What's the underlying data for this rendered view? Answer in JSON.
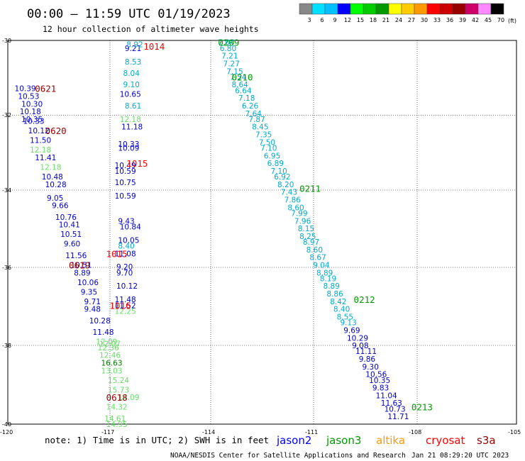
{
  "header": {
    "title": "00:00 – 11:59 UTC 01/19/2023",
    "subtitle": "12 hour collection of altimeter wave heights"
  },
  "legend": {
    "colors": [
      "#888888",
      "#00e0ff",
      "#00c0ff",
      "#0000ff",
      "#00ff00",
      "#00cc00",
      "#009900",
      "#ffff00",
      "#ffcc00",
      "#ff9900",
      "#ff0000",
      "#cc0000",
      "#990000",
      "#cc0066",
      "#ff88ff",
      "#000000"
    ],
    "labels": [
      "3",
      "6",
      "9",
      "12",
      "15",
      "18",
      "21",
      "24",
      "27",
      "30",
      "33",
      "36",
      "39",
      "42",
      "45",
      "70"
    ],
    "unit": "(ft)"
  },
  "axes": {
    "lat_labels": [
      "-30",
      "-32",
      "-34",
      "-36",
      "-38",
      "-40"
    ],
    "lon_labels": [
      "-120",
      "-117",
      "-114",
      "-111",
      "-108",
      "-105"
    ]
  },
  "satellites": [
    {
      "name": "jason2",
      "color": "#0000ff"
    },
    {
      "name": "jason3",
      "color": "#009900"
    },
    {
      "name": "altika",
      "color": "#ff9900"
    },
    {
      "name": "cryosat",
      "color": "#ff0000"
    },
    {
      "name": "s3a",
      "color": "#990000"
    }
  ],
  "footer": {
    "note": "note: 1) Time is in UTC; 2) SWH is in feet",
    "credit": "NOAA/NESDIS Center for Satellite Applications and Research",
    "timestamp": "Jan 21 08:29:20 UTC 2023"
  },
  "time_labels": [
    {
      "text": "0209",
      "color": "#009900",
      "lon": -113.8,
      "lat": -30.05
    },
    {
      "text": "0210",
      "color": "#009900",
      "lon": -113.4,
      "lat": -30.95
    },
    {
      "text": "0211",
      "color": "#009900",
      "lon": -111.4,
      "lat": -33.85
    },
    {
      "text": "0212",
      "color": "#009900",
      "lon": -109.8,
      "lat": -36.75
    },
    {
      "text": "0213",
      "color": "#009900",
      "lon": -108.1,
      "lat": -39.55
    },
    {
      "text": "0621",
      "color": "#990000",
      "lon": -119.2,
      "lat": -31.25
    },
    {
      "text": "0620",
      "color": "#990000",
      "lon": -118.9,
      "lat": -32.35
    },
    {
      "text": "0619",
      "color": "#990000",
      "lon": -118.2,
      "lat": -35.85
    },
    {
      "text": "0618",
      "color": "#990000",
      "lon": -117.1,
      "lat": -39.3
    },
    {
      "text": "1014",
      "color": "#ff0000",
      "lon": -116.0,
      "lat": -30.15
    },
    {
      "text": "1015",
      "color": "#ff0000",
      "lon": -116.5,
      "lat": -33.2
    },
    {
      "text": "1015",
      "color": "#ff0000",
      "lon": -117.1,
      "lat": -35.55
    },
    {
      "text": "1016",
      "color": "#ff0000",
      "lon": -117.0,
      "lat": -36.9
    }
  ],
  "tracks": [
    {
      "name": "jason3-cyan",
      "color": "#00aacc",
      "points": [
        [
          "7.04",
          -113.8,
          -30.05
        ],
        [
          "6.80",
          -113.75,
          -30.2
        ],
        [
          "7.21",
          -113.7,
          -30.4
        ],
        [
          "7.27",
          -113.65,
          -30.6
        ],
        [
          "7.15",
          -113.55,
          -30.8
        ],
        [
          "7.54",
          -113.45,
          -30.95
        ],
        [
          "8.64",
          -113.4,
          -31.15
        ],
        [
          "6.64",
          -113.3,
          -31.3
        ],
        [
          "7.18",
          -113.2,
          -31.5
        ],
        [
          "6.26",
          -113.1,
          -31.7
        ],
        [
          "7.64",
          -113.0,
          -31.9
        ],
        [
          "7.87",
          -112.9,
          -32.05
        ],
        [
          "8.45",
          -112.8,
          -32.25
        ],
        [
          "7.35",
          -112.7,
          -32.45
        ],
        [
          "7.50",
          -112.6,
          -32.65
        ],
        [
          "7.10",
          -112.55,
          -32.8
        ],
        [
          "6.95",
          -112.45,
          -33.0
        ],
        [
          "6.89",
          -112.35,
          -33.2
        ],
        [
          "7.10",
          -112.25,
          -33.4
        ],
        [
          "6.92",
          -112.15,
          -33.55
        ],
        [
          "8.20",
          -112.05,
          -33.75
        ],
        [
          "7.43",
          -111.95,
          -33.95
        ],
        [
          "7.86",
          -111.85,
          -34.15
        ],
        [
          "8.60",
          -111.75,
          -34.35
        ],
        [
          "7.99",
          -111.65,
          -34.5
        ],
        [
          "7.96",
          -111.55,
          -34.7
        ],
        [
          "8.15",
          -111.45,
          -34.9
        ],
        [
          "8.25",
          -111.4,
          -35.1
        ],
        [
          "8.97",
          -111.3,
          -35.25
        ],
        [
          "8.60",
          -111.2,
          -35.45
        ],
        [
          "8.67",
          -111.1,
          -35.65
        ],
        [
          "9.04",
          -111.0,
          -35.85
        ],
        [
          "8.89",
          -110.9,
          -36.05
        ],
        [
          "8.19",
          -110.8,
          -36.2
        ],
        [
          "8.89",
          -110.7,
          -36.4
        ],
        [
          "8.86",
          -110.6,
          -36.6
        ],
        [
          "8.42",
          -110.5,
          -36.8
        ],
        [
          "8.40",
          -110.4,
          -37.0
        ],
        [
          "8.55",
          -110.3,
          -37.2
        ],
        [
          "9.13",
          -110.2,
          -37.35
        ]
      ]
    },
    {
      "name": "jason2-blue",
      "color": "#0000cc",
      "points": [
        [
          "9.69",
          -110.1,
          -37.55
        ],
        [
          "10.29",
          -110.0,
          -37.75
        ],
        [
          "9.08",
          -109.85,
          -37.95
        ],
        [
          "11.11",
          -109.75,
          -38.1
        ],
        [
          "9.86",
          -109.65,
          -38.3
        ],
        [
          "9.30",
          -109.55,
          -38.5
        ],
        [
          "10.56",
          -109.45,
          -38.7
        ],
        [
          "10.35",
          -109.35,
          -38.85
        ],
        [
          "9.83",
          -109.25,
          -39.05
        ],
        [
          "11.04",
          -109.15,
          -39.25
        ],
        [
          "11.63",
          -109.0,
          -39.45
        ],
        [
          "10.73",
          -108.9,
          -39.6
        ],
        [
          "11.71",
          -108.8,
          -39.8
        ]
      ]
    },
    {
      "name": "left-track-blue",
      "color": "#0000cc",
      "points": [
        [
          "10.39",
          -119.8,
          -31.25
        ],
        [
          "10.53",
          -119.7,
          -31.45
        ],
        [
          "10.30",
          -119.6,
          -31.65
        ],
        [
          "10.18",
          -119.65,
          -31.85
        ],
        [
          "10.35",
          -119.6,
          -32.05
        ],
        [
          "10.33",
          -119.55,
          -32.1
        ],
        [
          "10.12",
          -119.4,
          -32.35
        ],
        [
          "11.50",
          -119.35,
          -32.6
        ],
        [
          "11.41",
          -119.2,
          -33.05
        ],
        [
          "10.48",
          -119.0,
          -33.55
        ],
        [
          "10.28",
          -118.9,
          -33.75
        ],
        [
          "9.05",
          -118.85,
          -34.1
        ],
        [
          "9.66",
          -118.7,
          -34.3
        ],
        [
          "10.76",
          -118.6,
          -34.6
        ],
        [
          "10.41",
          -118.5,
          -34.8
        ],
        [
          "10.51",
          -118.45,
          -35.05
        ],
        [
          "9.60",
          -118.35,
          -35.3
        ],
        [
          "11.56",
          -118.3,
          -35.6
        ],
        [
          "10.51",
          -118.15,
          -35.85
        ],
        [
          "8.89",
          -118.05,
          -36.05
        ],
        [
          "10.06",
          -117.95,
          -36.3
        ],
        [
          "9.35",
          -117.85,
          -36.55
        ],
        [
          "9.71",
          -117.75,
          -36.8
        ],
        [
          "9.48",
          -117.75,
          -37.0
        ],
        [
          "10.28",
          -117.6,
          -37.3
        ],
        [
          "11.48",
          -117.5,
          -37.6
        ]
      ]
    },
    {
      "name": "left-track-green",
      "color": "#66dd66",
      "points": [
        [
          "12.18",
          -119.35,
          -32.85
        ],
        [
          "12.18",
          -119.05,
          -33.3
        ],
        [
          "12.09",
          -117.4,
          -37.85
        ],
        [
          "12.07",
          -117.3,
          -37.9
        ],
        [
          "12.36",
          -117.35,
          -38.0
        ],
        [
          "12.46",
          -117.3,
          -38.2
        ],
        [
          "13.03",
          -117.25,
          -38.6
        ],
        [
          "15.24",
          -117.05,
          -38.85
        ],
        [
          "15.73",
          -117.05,
          -39.1
        ],
        [
          "14.09",
          -116.75,
          -39.3
        ],
        [
          "14.32",
          -117.1,
          -39.55
        ],
        [
          "14.61",
          -117.15,
          -39.85
        ],
        [
          "14.95",
          -117.1,
          -40.0
        ]
      ]
    },
    {
      "name": "left-track-darkgreen",
      "color": "#007700",
      "points": [
        [
          "16.63",
          -117.25,
          -38.4
        ]
      ]
    },
    {
      "name": "mid-track-blue",
      "color": "#0000cc",
      "points": [
        [
          "9.21",
          -116.55,
          -30.2
        ],
        [
          "10.65",
          -116.7,
          -31.4
        ],
        [
          "11.18",
          -116.65,
          -32.25
        ],
        [
          "10.33",
          -116.75,
          -32.7
        ],
        [
          "10.09",
          -116.75,
          -32.8
        ],
        [
          "10.49",
          -116.85,
          -33.25
        ],
        [
          "10.59",
          -116.85,
          -33.4
        ],
        [
          "10.75",
          -116.85,
          -33.7
        ],
        [
          "10.59",
          -116.85,
          -34.05
        ],
        [
          "9.43",
          -116.75,
          -34.7
        ],
        [
          "10.84",
          -116.7,
          -34.85
        ],
        [
          "10.05",
          -116.75,
          -35.2
        ],
        [
          "11.08",
          -116.85,
          -35.55
        ],
        [
          "9.20",
          -116.8,
          -35.9
        ],
        [
          "9.70",
          -116.8,
          -36.05
        ],
        [
          "10.12",
          -116.8,
          -36.4
        ],
        [
          "11.48",
          -116.85,
          -36.75
        ],
        [
          "11.52",
          -116.85,
          -36.9
        ]
      ]
    },
    {
      "name": "mid-track-cyan",
      "color": "#00aacc",
      "points": [
        [
          "8.92",
          -116.5,
          -30.1
        ],
        [
          "8.53",
          -116.55,
          -30.55
        ],
        [
          "8.04",
          -116.6,
          -30.85
        ],
        [
          "9.10",
          -116.6,
          -31.15
        ],
        [
          "8.61",
          -116.55,
          -31.7
        ],
        [
          "8.40",
          -116.75,
          -35.35
        ]
      ]
    },
    {
      "name": "mid-track-green",
      "color": "#66dd66",
      "points": [
        [
          "12.18",
          -116.7,
          -32.05
        ],
        [
          "12.25",
          -116.85,
          -37.05
        ]
      ]
    }
  ]
}
